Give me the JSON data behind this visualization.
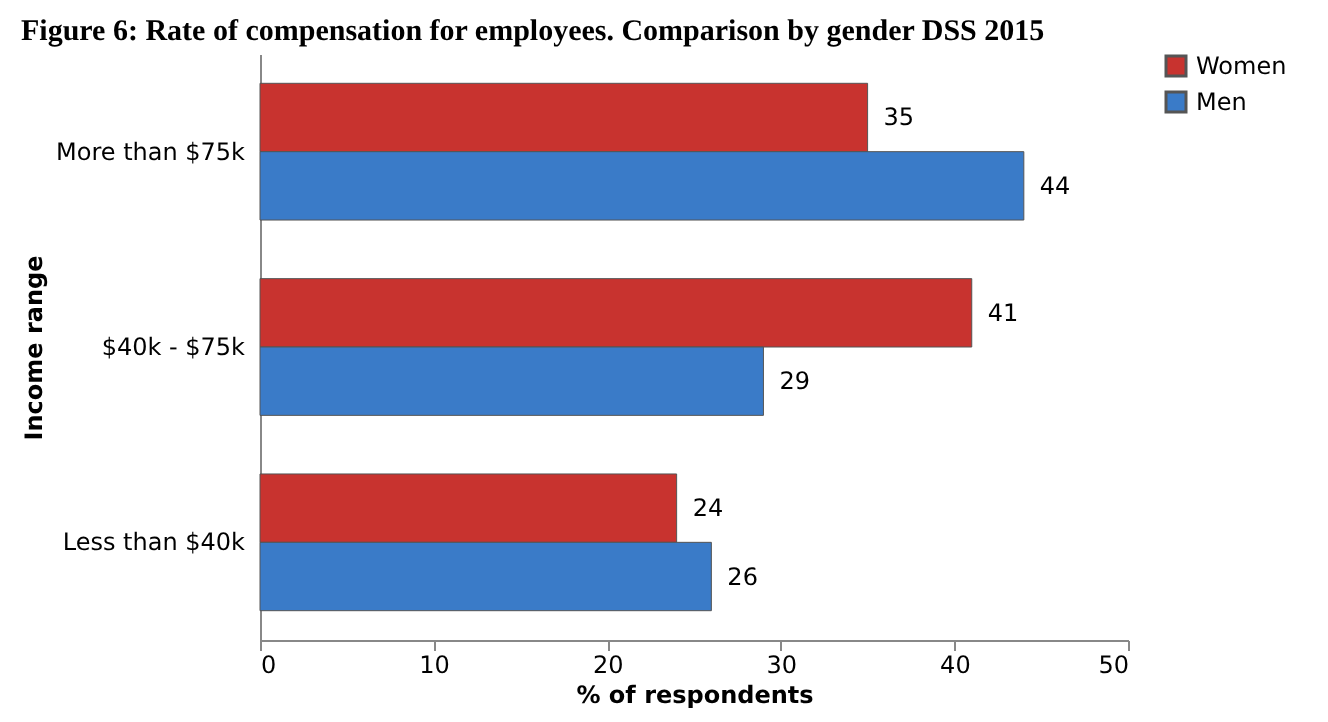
{
  "chart_data": {
    "type": "bar",
    "orientation": "horizontal",
    "title": "Figure 6: Rate of compensation for employees. Comparison by gender DSS 2015",
    "xlabel": "% of respondents",
    "ylabel": "Income range",
    "categories": [
      "More than $75k",
      "$40k - $75k",
      "Less than $40k"
    ],
    "series": [
      {
        "name": "Women",
        "color": "#c8332f",
        "values": [
          35,
          41,
          24
        ]
      },
      {
        "name": "Men",
        "color": "#3a7bc8",
        "values": [
          44,
          29,
          26
        ]
      }
    ],
    "xlim": [
      0,
      50
    ],
    "xticks": [
      0,
      10,
      20,
      30,
      40,
      50
    ],
    "grid": false,
    "legend": "right",
    "data_labels": true
  }
}
